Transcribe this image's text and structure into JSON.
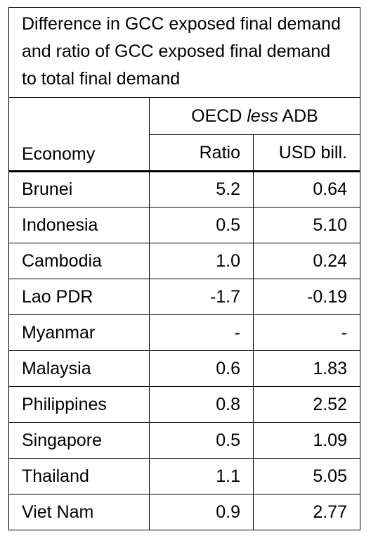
{
  "header": {
    "title": "Difference in GCC exposed final demand and ratio of GCC exposed final demand to total final demand"
  },
  "table": {
    "group_header": [
      "OECD",
      "less",
      "ADB"
    ],
    "columns": [
      "Economy",
      "Ratio",
      "USD bill."
    ],
    "rows": [
      [
        "Brunei",
        "5.2",
        "0.64"
      ],
      [
        "Indonesia",
        "0.5",
        "5.10"
      ],
      [
        "Cambodia",
        "1.0",
        "0.24"
      ],
      [
        "Lao PDR",
        "-1.7",
        "-0.19"
      ],
      [
        "Myanmar",
        "-",
        "-"
      ],
      [
        "Malaysia",
        "0.6",
        "1.83"
      ],
      [
        "Philippines",
        "0.8",
        "2.52"
      ],
      [
        "Singapore",
        "0.5",
        "1.09"
      ],
      [
        "Thailand",
        "1.1",
        "5.05"
      ],
      [
        "Viet Nam",
        "0.9",
        "2.77"
      ]
    ]
  }
}
